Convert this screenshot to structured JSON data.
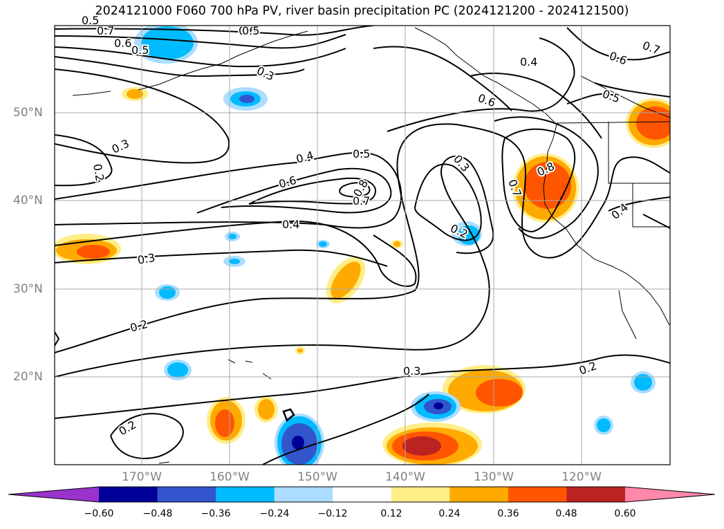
{
  "title": "2024121000 F060 700 hPa PV, river basin precipitation PC (2024121200 - 2024121500)",
  "lat_labels": [
    "50°N",
    "40°N",
    "30°N",
    "20°N"
  ],
  "lon_labels": [
    "170°W",
    "160°W",
    "150°W",
    "140°W",
    "130°W",
    "120°W"
  ],
  "colorbar": {
    "colors": [
      "#9933cc",
      "#000099",
      "#3355cc",
      "#00bbff",
      "#aaddff",
      "#ffffff",
      "#ffee88",
      "#ffaa00",
      "#ff5500",
      "#bb2222",
      "#ff88aa"
    ],
    "tick_labels": [
      "−0.60",
      "−0.48",
      "−0.36",
      "−0.24",
      "−0.12",
      "0.12",
      "0.24",
      "0.36",
      "0.48",
      "0.60"
    ]
  },
  "contour_labels": [
    "0.7",
    "0.6",
    "0.5",
    "0.3",
    "0.5",
    "0.4",
    "0.6",
    "0.7",
    "0.6",
    "0.5",
    "0.2",
    "0.3",
    "0.4",
    "0.5",
    "0.6",
    "0.8",
    "0.7",
    "0.4",
    "0.3",
    "0.3",
    "0.2",
    "0.8",
    "0.7",
    "0.2",
    "0.4",
    "0.6",
    "0.5",
    "0.3",
    "0.2",
    "0.2"
  ]
}
